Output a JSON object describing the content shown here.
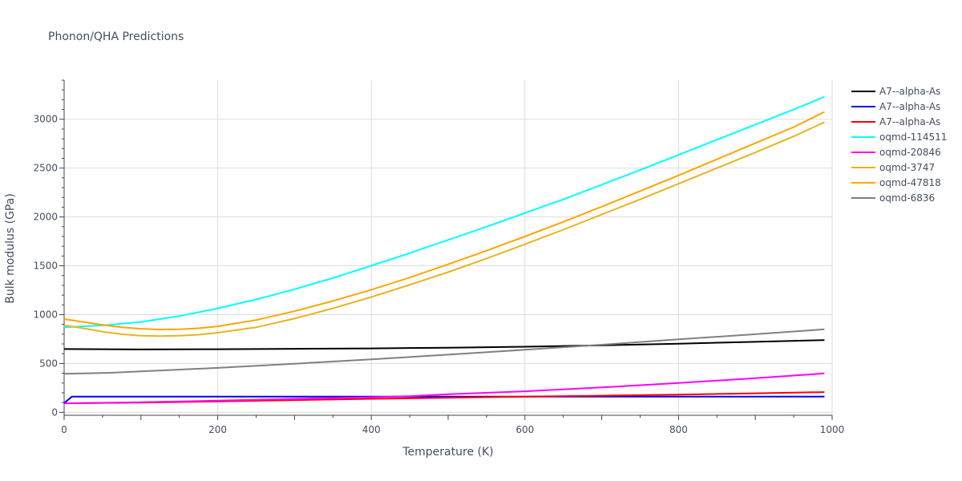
{
  "chart_data": {
    "type": "line",
    "title": "Phonon/QHA Predictions",
    "xlabel": "Temperature (K)",
    "ylabel": "Bulk modulus (GPa)",
    "xlim": [
      0,
      1000
    ],
    "ylim": [
      -30,
      3400
    ],
    "xticks": [
      0,
      200,
      400,
      600,
      800,
      1000
    ],
    "yticks": [
      0,
      500,
      1000,
      1500,
      2000,
      2500,
      3000
    ],
    "grid": true,
    "legend_position": "right",
    "series": [
      {
        "name": "A7--alpha-As",
        "color": "#000000",
        "x": [
          0,
          100,
          200,
          300,
          400,
          500,
          600,
          700,
          800,
          900,
          990
        ],
        "y": [
          648,
          644,
          646,
          650,
          654,
          662,
          672,
          686,
          703,
          722,
          740
        ]
      },
      {
        "name": "A7--alpha-As",
        "color": "#0000ff",
        "x": [
          0,
          10,
          100,
          200,
          300,
          400,
          500,
          600,
          700,
          800,
          900,
          990
        ],
        "y": [
          95,
          160,
          160,
          160,
          160,
          160,
          160,
          160,
          160,
          160,
          160,
          160
        ]
      },
      {
        "name": "A7--alpha-As",
        "color": "#ff0000",
        "x": [
          0,
          100,
          200,
          300,
          400,
          500,
          600,
          700,
          800,
          900,
          990
        ],
        "y": [
          92,
          100,
          112,
          125,
          138,
          150,
          160,
          170,
          182,
          195,
          207
        ]
      },
      {
        "name": "oqmd-114511",
        "color": "#00ffff",
        "x": [
          0,
          50,
          100,
          150,
          200,
          250,
          300,
          350,
          400,
          450,
          500,
          550,
          600,
          650,
          700,
          750,
          800,
          850,
          900,
          950,
          990
        ],
        "y": [
          870,
          890,
          925,
          985,
          1065,
          1155,
          1260,
          1375,
          1500,
          1630,
          1765,
          1900,
          2040,
          2180,
          2330,
          2480,
          2635,
          2790,
          2945,
          3100,
          3230
        ]
      },
      {
        "name": "oqmd-20846",
        "color": "#ff00ff",
        "x": [
          0,
          100,
          200,
          300,
          400,
          450,
          500,
          600,
          700,
          800,
          900,
          990
        ],
        "y": [
          92,
          103,
          120,
          138,
          155,
          165,
          185,
          215,
          255,
          300,
          350,
          398
        ]
      },
      {
        "name": "oqmd-3747",
        "color": "#e6b422",
        "x": [
          0,
          25,
          50,
          75,
          100,
          125,
          150,
          175,
          200,
          250,
          300,
          350,
          400,
          450,
          500,
          550,
          600,
          650,
          700,
          750,
          800,
          850,
          900,
          950,
          990
        ],
        "y": [
          890,
          860,
          825,
          800,
          785,
          780,
          785,
          795,
          815,
          870,
          960,
          1065,
          1180,
          1305,
          1435,
          1575,
          1720,
          1870,
          2025,
          2180,
          2340,
          2500,
          2660,
          2825,
          2970
        ]
      },
      {
        "name": "oqmd-47818",
        "color": "#ffa500",
        "x": [
          0,
          25,
          50,
          75,
          100,
          125,
          150,
          175,
          200,
          250,
          300,
          350,
          400,
          450,
          500,
          550,
          600,
          650,
          700,
          750,
          800,
          850,
          900,
          950,
          990
        ],
        "y": [
          955,
          925,
          895,
          870,
          855,
          848,
          850,
          860,
          880,
          945,
          1035,
          1140,
          1255,
          1380,
          1515,
          1655,
          1800,
          1950,
          2105,
          2265,
          2425,
          2590,
          2755,
          2920,
          3075
        ]
      },
      {
        "name": "oqmd-6836",
        "color": "#808080",
        "x": [
          0,
          60,
          100,
          200,
          300,
          400,
          500,
          600,
          700,
          800,
          900,
          990
        ],
        "y": [
          395,
          405,
          420,
          455,
          498,
          542,
          590,
          640,
          692,
          747,
          800,
          850
        ]
      }
    ]
  }
}
